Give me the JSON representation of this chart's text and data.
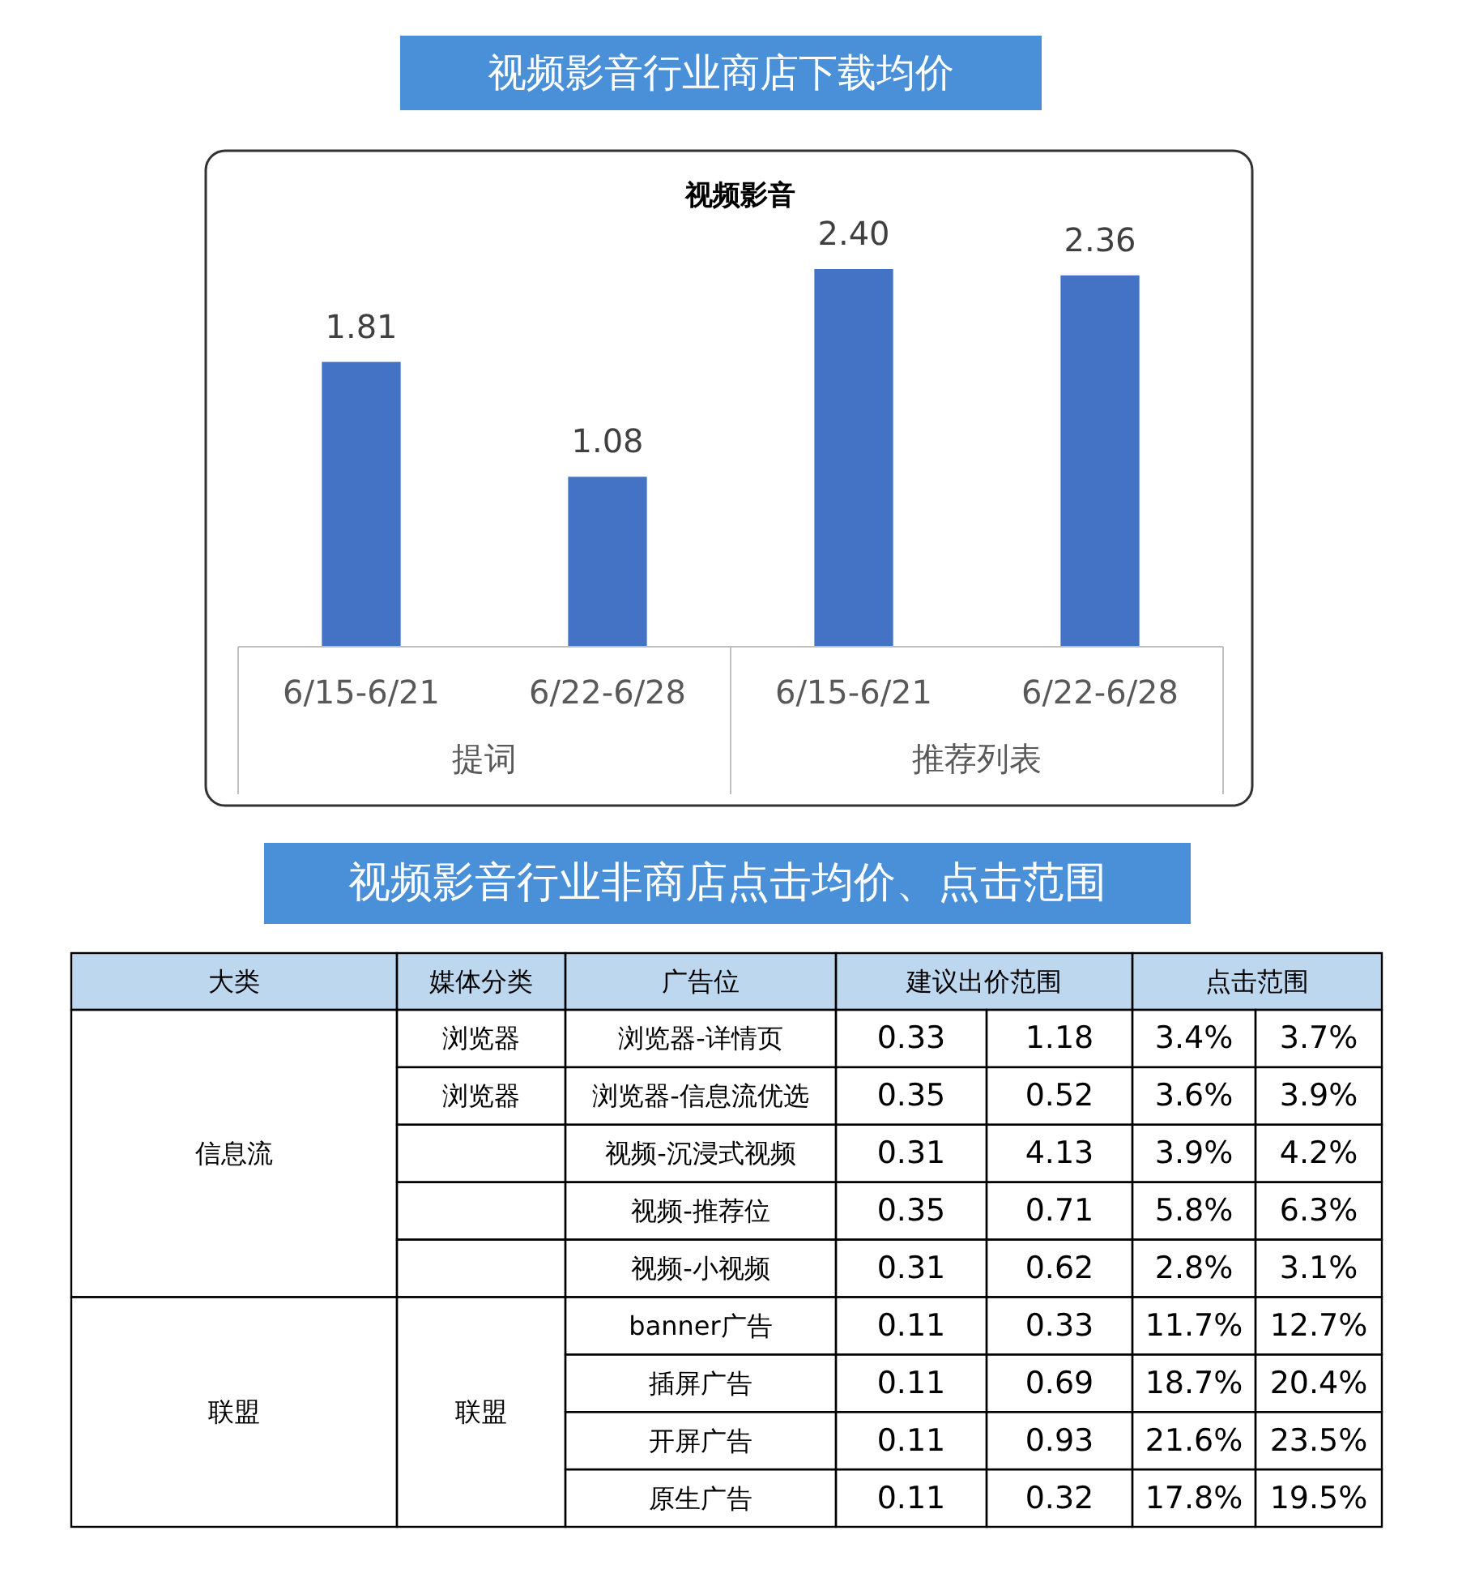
{
  "chart_data": [
    {
      "type": "bar",
      "title": "视频影音行业商店下载均价",
      "subtitle": "视频影音",
      "categories": [
        "6/15-6/21",
        "6/22-6/28",
        "6/15-6/21",
        "6/22-6/28"
      ],
      "values": [
        1.81,
        1.08,
        2.4,
        2.36
      ],
      "value_labels": [
        "1.81",
        "1.08",
        "2.40",
        "2.36"
      ],
      "color": "#4472c4",
      "annotations": [
        "提词",
        "推荐列表"
      ]
    },
    {
      "type": "other",
      "title": "视频影音行业非商店点击均价、点击范围",
      "annotations": [
        "大类",
        "媒体分类",
        "广告位",
        "建议出价范围",
        "点击范围",
        "信息流",
        "浏览器",
        "浏览器-详情页",
        "0.33",
        "1.18",
        "3.4%",
        "3.7%",
        "浏览器",
        "浏览器-信息流优选",
        "0.35",
        "0.52",
        "3.6%",
        "3.9%",
        "视频-沉浸式视频",
        "0.31",
        "4.13",
        "3.9%",
        "4.2%",
        "视频-推荐位",
        "0.35",
        "0.71",
        "5.8%",
        "6.3%",
        "视频-小视频",
        "0.31",
        "0.62",
        "2.8%",
        "3.1%",
        "联盟",
        "联盟",
        "banner广告",
        "0.11",
        "0.33",
        "11.7%",
        "12.7%",
        "插屏广告",
        "0.11",
        "0.69",
        "18.7%",
        "20.4%",
        "开屏广告",
        "0.11",
        "0.93",
        "21.6%",
        "23.5%",
        "原生广告",
        "0.11",
        "0.32",
        "17.8%",
        "19.5%"
      ]
    }
  ]
}
